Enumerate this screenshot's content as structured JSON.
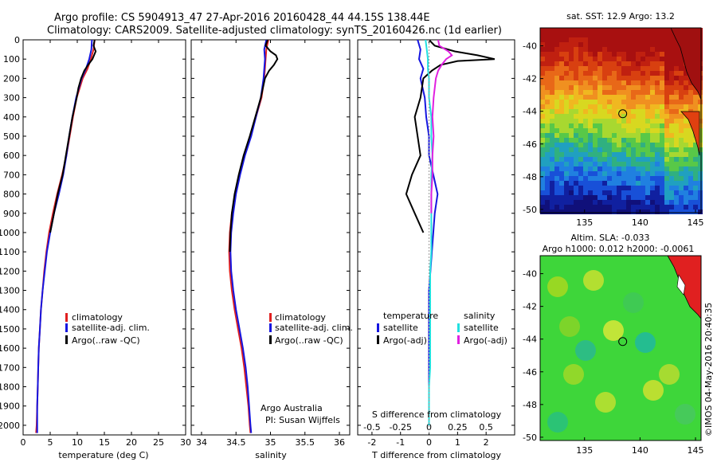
{
  "header": {
    "line1": "Argo profile: CS 5904913_47 27-Apr-2016 20160428_44 44.15S 138.44E",
    "line2": "Climatology: CARS2009. Satellite-adjusted climatology: synTS_20160426.nc (1d earlier)"
  },
  "credits": {
    "argo": "Argo Australia",
    "pi": "PI: Susan Wijffels",
    "imos": "©IMOS 04-May-2016 20:40:35"
  },
  "colors": {
    "climatology": "#e02020",
    "satellite": "#1515e0",
    "argo": "#000000",
    "sat_salinity": "#22e0e0",
    "argo_salinity": "#e020e0",
    "sst_warm": "#a01010",
    "sst_cold": "#10107a"
  },
  "chart_data": [
    {
      "type": "line",
      "xlabel": "temperature (deg C)",
      "ylabel": "",
      "xlim": [
        0,
        30
      ],
      "ylim": [
        2050,
        0
      ],
      "x_ticks": [
        0,
        5,
        10,
        15,
        20,
        25,
        30
      ],
      "y_ticks": [
        0,
        100,
        200,
        300,
        400,
        500,
        600,
        700,
        800,
        900,
        1000,
        1100,
        1200,
        1300,
        1400,
        1500,
        1600,
        1700,
        1800,
        1900,
        2000
      ],
      "legend": [
        "climatology",
        "satellite-adj. clim.",
        "Argo(..raw -QC)"
      ],
      "series": [
        {
          "name": "climatology",
          "color": "#e02020",
          "depth": [
            0,
            50,
            100,
            150,
            200,
            300,
            400,
            500,
            600,
            700,
            800,
            900,
            1000,
            1100,
            1200,
            1300,
            1400,
            1500,
            1600,
            1700,
            1800,
            1900,
            2000,
            2040
          ],
          "values": [
            13.2,
            13.0,
            12.5,
            11.9,
            11.0,
            9.9,
            9.2,
            8.6,
            8.0,
            7.2,
            6.3,
            5.5,
            4.8,
            4.3,
            3.9,
            3.6,
            3.3,
            3.1,
            2.9,
            2.8,
            2.7,
            2.6,
            2.5,
            2.4
          ]
        },
        {
          "name": "satellite-adj. clim.",
          "color": "#1515e0",
          "depth": [
            0,
            50,
            100,
            150,
            200,
            300,
            400,
            500,
            600,
            700,
            800,
            900,
            1000,
            1100,
            1200,
            1300,
            1400,
            1500,
            1600,
            1700,
            1800,
            1900,
            2000,
            2040
          ],
          "values": [
            12.7,
            12.6,
            12.2,
            11.6,
            10.8,
            9.8,
            9.1,
            8.5,
            8.0,
            7.4,
            6.6,
            5.7,
            5.0,
            4.4,
            4.0,
            3.6,
            3.3,
            3.1,
            2.9,
            2.8,
            2.7,
            2.6,
            2.6,
            2.6
          ]
        },
        {
          "name": "Argo(..raw -QC)",
          "color": "#000000",
          "depth": [
            0,
            30,
            60,
            100,
            130,
            160,
            200,
            250,
            300,
            400,
            500,
            600,
            700,
            800,
            900,
            1000
          ],
          "values": [
            13.2,
            13.0,
            13.4,
            12.8,
            12.0,
            11.3,
            10.7,
            10.2,
            9.9,
            9.1,
            8.5,
            7.9,
            7.3,
            6.4,
            5.7,
            5.0
          ]
        }
      ]
    },
    {
      "type": "line",
      "xlabel": "salinity",
      "ylabel": "",
      "xlim": [
        33.85,
        36.15
      ],
      "ylim": [
        2050,
        0
      ],
      "x_ticks": [
        34,
        34.5,
        35,
        35.5,
        36
      ],
      "legend": [
        "climatology",
        "satellite-adj. clim.",
        "Argo(..raw -QC)"
      ],
      "series": [
        {
          "name": "climatology",
          "color": "#e02020",
          "depth": [
            0,
            50,
            100,
            200,
            300,
            400,
            500,
            600,
            700,
            800,
            900,
            1000,
            1100,
            1200,
            1300,
            1400,
            1500,
            1600,
            1700,
            1800,
            1900,
            2000,
            2040
          ],
          "values": [
            34.97,
            34.94,
            34.93,
            34.91,
            34.87,
            34.79,
            34.71,
            34.62,
            34.55,
            34.49,
            34.44,
            34.41,
            34.4,
            34.41,
            34.44,
            34.48,
            34.53,
            34.58,
            34.62,
            34.65,
            34.68,
            34.7,
            34.71
          ]
        },
        {
          "name": "satellite-adj. clim.",
          "color": "#1515e0",
          "depth": [
            0,
            50,
            100,
            200,
            300,
            400,
            500,
            600,
            700,
            800,
            900,
            1000,
            1100,
            1200,
            1300,
            1400,
            1500,
            1600,
            1700,
            1800,
            1900,
            2000,
            2040
          ],
          "values": [
            34.94,
            34.91,
            34.92,
            34.9,
            34.86,
            34.79,
            34.72,
            34.63,
            34.56,
            34.5,
            34.46,
            34.43,
            34.42,
            34.43,
            34.46,
            34.5,
            34.55,
            34.6,
            34.64,
            34.67,
            34.69,
            34.71,
            34.72
          ]
        },
        {
          "name": "Argo(..raw -QC)",
          "color": "#000000",
          "depth": [
            0,
            30,
            60,
            80,
            100,
            130,
            160,
            200,
            300,
            400,
            500,
            600,
            700,
            800,
            900,
            1000,
            1100
          ],
          "values": [
            34.96,
            34.93,
            35.0,
            35.08,
            35.1,
            35.05,
            34.98,
            34.92,
            34.86,
            34.78,
            34.7,
            34.61,
            34.54,
            34.48,
            34.44,
            34.42,
            34.41
          ]
        }
      ]
    },
    {
      "type": "line",
      "xlabel": "T difference from climatology",
      "x2label": "S difference from climatology",
      "ylabel": "",
      "xlim": [
        -2.5,
        3.0
      ],
      "x2lim": [
        -0.625,
        0.75
      ],
      "ylim": [
        2050,
        0
      ],
      "x_ticks": [
        -2,
        -1,
        0,
        1,
        2
      ],
      "x2_ticks": [
        -0.5,
        -0.25,
        0,
        0.25,
        0.5
      ],
      "x2_tick_labels": [
        "-0.5",
        "-0.25",
        "0",
        "0.25",
        "0.5"
      ],
      "legend": [
        "temperature",
        "satellite",
        "Argo(-adj)",
        "salinity",
        "satellite",
        "Argo(-adj)"
      ],
      "series": [
        {
          "name": "satellite",
          "color": "#1515e0",
          "axis": "T",
          "depth": [
            0,
            50,
            100,
            150,
            200,
            300,
            400,
            500,
            600,
            700,
            800,
            900,
            1000,
            1100,
            1200,
            1300,
            1400,
            1500,
            1600,
            1700,
            1800,
            1900,
            2000
          ],
          "values": [
            -0.4,
            -0.3,
            -0.35,
            -0.2,
            -0.3,
            -0.15,
            -0.1,
            0.0,
            0.0,
            0.15,
            0.3,
            0.2,
            0.15,
            0.1,
            0.05,
            0.0,
            0.0,
            0.0,
            0.0,
            0.0,
            0.0,
            0.0,
            0.0
          ]
        },
        {
          "name": "Argo(-adj)",
          "color": "#000000",
          "axis": "T",
          "depth": [
            0,
            30,
            60,
            80,
            100,
            110,
            130,
            160,
            200,
            300,
            400,
            500,
            600,
            700,
            800,
            900,
            1000
          ],
          "values": [
            0.0,
            0.2,
            0.9,
            1.7,
            2.3,
            1.0,
            0.4,
            0.1,
            -0.2,
            -0.3,
            -0.5,
            -0.4,
            -0.3,
            -0.6,
            -0.8,
            -0.5,
            -0.2
          ]
        },
        {
          "name": "satellite",
          "color": "#22e0e0",
          "axis": "S",
          "depth": [
            0,
            50,
            100,
            150,
            200,
            300,
            400,
            500,
            600,
            700,
            800,
            900,
            1000,
            1100,
            1200,
            1300,
            1400,
            1500,
            1600,
            1700,
            1800,
            1900,
            2000
          ],
          "values": [
            -0.03,
            -0.02,
            -0.01,
            -0.01,
            0.0,
            0.0,
            0.02,
            0.02,
            0.03,
            0.02,
            0.02,
            0.02,
            0.02,
            0.02,
            0.01,
            0.01,
            0.01,
            0.01,
            0.01,
            0.01,
            0.0,
            0.0,
            0.0
          ]
        },
        {
          "name": "Argo(-adj)",
          "color": "#e020e0",
          "axis": "S",
          "depth": [
            0,
            30,
            60,
            80,
            100,
            130,
            160,
            200,
            300,
            400,
            500,
            600,
            700,
            800,
            900
          ],
          "values": [
            0.08,
            0.09,
            0.17,
            0.2,
            0.15,
            0.11,
            0.08,
            0.06,
            0.04,
            0.03,
            0.04,
            0.03,
            0.03,
            0.02,
            0.02
          ]
        }
      ]
    },
    {
      "type": "heatmap",
      "title": "sat. SST: 12.9  Argo: 13.2",
      "xlim": [
        131,
        145.5
      ],
      "ylim": [
        -50.2,
        -38.9
      ],
      "x_ticks": [
        135,
        140,
        145
      ],
      "y_ticks": [
        -40,
        -42,
        -44,
        -46,
        -48,
        -50
      ],
      "marker": {
        "lon": 138.44,
        "lat": -44.15
      }
    },
    {
      "type": "heatmap",
      "title": "Altim. SLA: -0.033",
      "subtitle": "Argo h1000: 0.012 h2000: -0.0061",
      "xlim": [
        131,
        145.5
      ],
      "ylim": [
        -50.2,
        -38.9
      ],
      "x_ticks": [
        135,
        140,
        145
      ],
      "y_ticks": [
        -40,
        -42,
        -44,
        -46,
        -48,
        -50
      ],
      "marker": {
        "lon": 138.44,
        "lat": -44.15
      }
    }
  ]
}
